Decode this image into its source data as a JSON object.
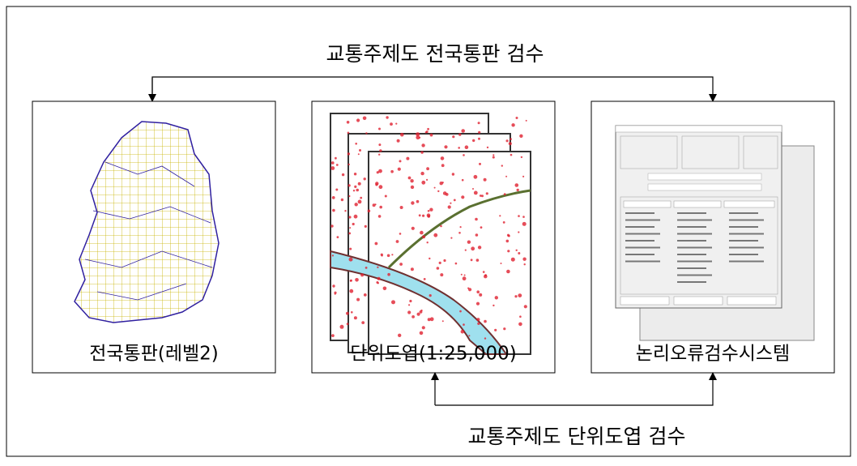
{
  "diagram": {
    "top_label": "교통주제도 전국통판 검수",
    "bottom_label": "교통주제도 단위도엽 검수",
    "panels": [
      {
        "caption": "전국통판(레벨2)"
      },
      {
        "caption": "단위도엽(1:25,000)"
      },
      {
        "caption": "논리오류검수시스템"
      }
    ]
  }
}
